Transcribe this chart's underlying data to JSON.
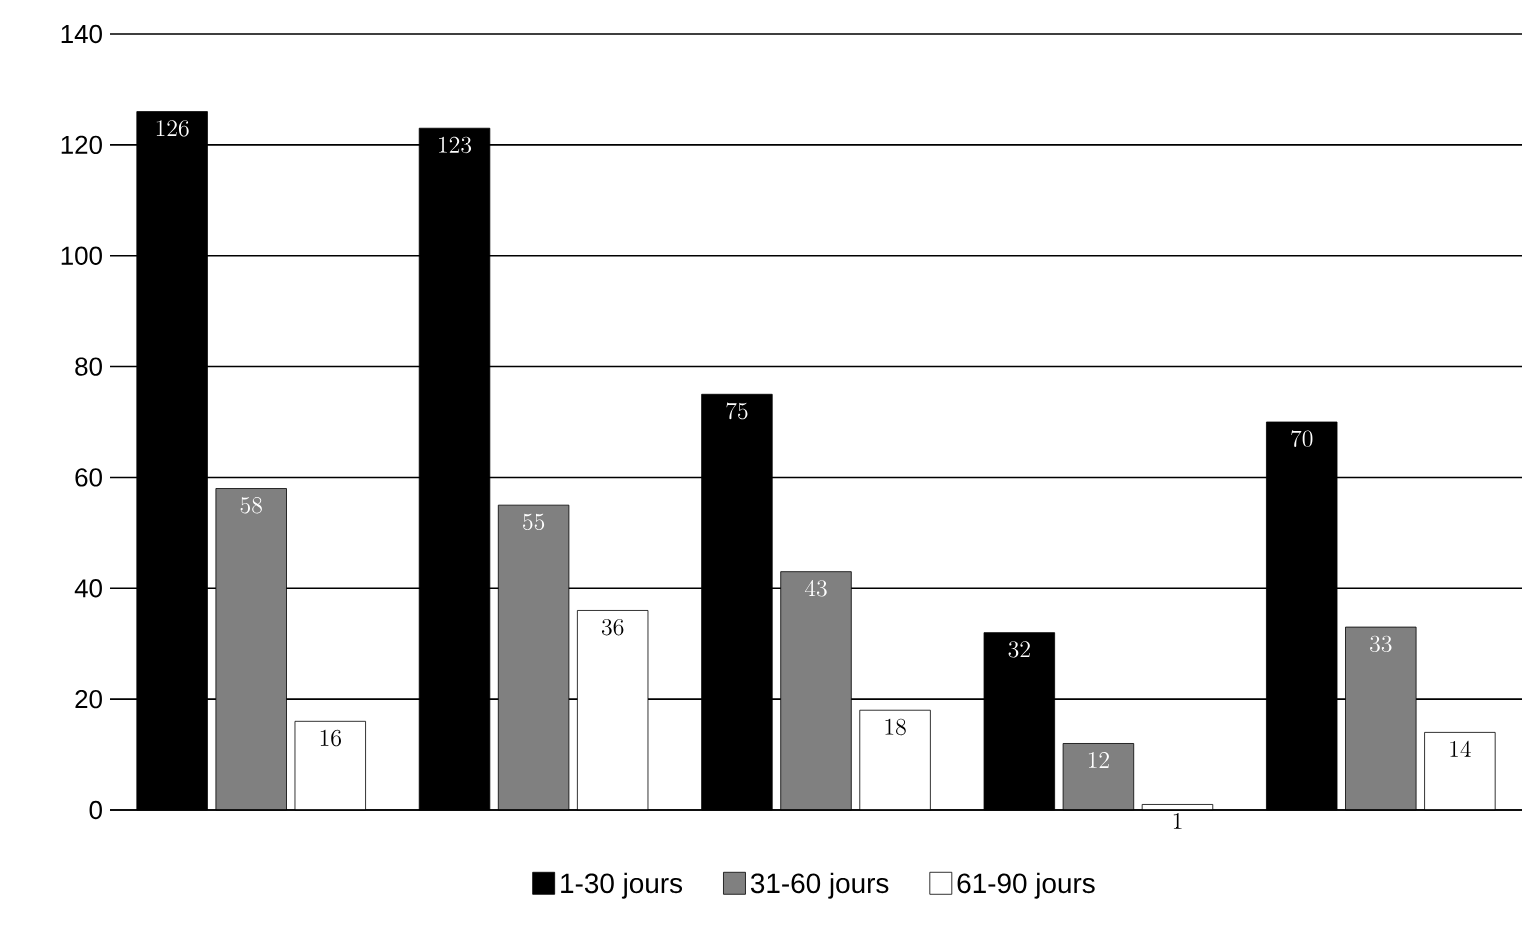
{
  "chart_data": {
    "type": "bar",
    "categories": [
      null,
      null,
      null,
      null,
      null
    ],
    "series": [
      {
        "name": "1-30 jours",
        "color": "#000000",
        "values": [
          126,
          123,
          75,
          32,
          70
        ]
      },
      {
        "name": "31-60 jours",
        "color": "#808080",
        "values": [
          58,
          55,
          43,
          12,
          33
        ]
      },
      {
        "name": "61-90 jours",
        "color": "#ffffff",
        "values": [
          16,
          36,
          18,
          1,
          14
        ]
      }
    ],
    "ylim": [
      0,
      140
    ],
    "yticks": [
      0,
      20,
      40,
      60,
      80,
      100,
      120,
      140
    ],
    "grid": "y",
    "legend": "bottom",
    "data_labels": true
  }
}
